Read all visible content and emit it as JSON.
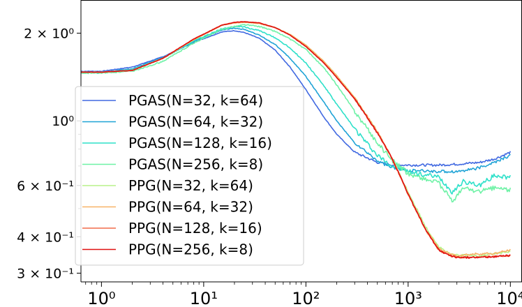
{
  "chart_data": {
    "type": "line",
    "title": "",
    "xlabel": "",
    "ylabel": "",
    "xscale": "log",
    "yscale": "log",
    "xlim": [
      0.63,
      13000
    ],
    "ylim": [
      0.28,
      2.6
    ],
    "grid": false,
    "legend_position": "center-left",
    "x_ticks": [
      {
        "value": 1,
        "label": "10⁰"
      },
      {
        "value": 10,
        "label": "10¹"
      },
      {
        "value": 100,
        "label": "10²"
      },
      {
        "value": 1000,
        "label": "10³"
      },
      {
        "value": 10000,
        "label": "10⁴"
      }
    ],
    "y_ticks": [
      {
        "value": 2.0,
        "label": "2 × 10⁰"
      },
      {
        "value": 1.0,
        "label": "10⁰"
      },
      {
        "value": 0.6,
        "label": "6 × 10⁻¹"
      },
      {
        "value": 0.4,
        "label": "4 × 10⁻¹"
      },
      {
        "value": 0.3,
        "label": "3 × 10⁻¹"
      }
    ],
    "series": [
      {
        "name": "PGAS(N=32, k=64)",
        "color": "#4169e1",
        "noise": 0.004,
        "x": [
          0.63,
          1,
          2,
          4,
          8,
          15,
          20,
          25,
          35,
          50,
          70,
          100,
          150,
          200,
          300,
          500,
          700,
          1000,
          2000,
          3000,
          5000,
          7000,
          10000
        ],
        "y": [
          1.48,
          1.48,
          1.53,
          1.66,
          1.86,
          2.02,
          2.04,
          2.01,
          1.92,
          1.75,
          1.53,
          1.28,
          1.03,
          0.9,
          0.78,
          0.72,
          0.706,
          0.705,
          0.705,
          0.71,
          0.72,
          0.74,
          0.78
        ]
      },
      {
        "name": "PGAS(N=64, k=32)",
        "color": "#1fa3d6",
        "noise": 0.005,
        "x": [
          0.63,
          1,
          2,
          4,
          8,
          15,
          20,
          25,
          35,
          50,
          70,
          100,
          150,
          200,
          300,
          500,
          700,
          1000,
          2000,
          3000,
          5000,
          7000,
          10000
        ],
        "y": [
          1.47,
          1.47,
          1.51,
          1.65,
          1.87,
          2.05,
          2.08,
          2.06,
          1.97,
          1.83,
          1.64,
          1.42,
          1.16,
          1.0,
          0.84,
          0.73,
          0.69,
          0.675,
          0.67,
          0.67,
          0.69,
          0.72,
          0.76
        ]
      },
      {
        "name": "PGAS(N=128, k=16)",
        "color": "#2de0c9",
        "noise": 0.008,
        "x": [
          0.63,
          1,
          2,
          4,
          8,
          15,
          20,
          25,
          35,
          50,
          70,
          100,
          150,
          200,
          300,
          500,
          700,
          1000,
          2000,
          2700,
          3500,
          5000,
          7000,
          10000
        ],
        "y": [
          1.46,
          1.46,
          1.5,
          1.64,
          1.88,
          2.07,
          2.11,
          2.1,
          2.04,
          1.93,
          1.78,
          1.58,
          1.32,
          1.14,
          0.94,
          0.76,
          0.7,
          0.67,
          0.64,
          0.57,
          0.62,
          0.6,
          0.65,
          0.64
        ]
      },
      {
        "name": "PGAS(N=256, k=8)",
        "color": "#6ef2a6",
        "noise": 0.008,
        "x": [
          0.63,
          1,
          2,
          4,
          8,
          15,
          20,
          25,
          35,
          50,
          70,
          100,
          150,
          200,
          300,
          500,
          700,
          1000,
          2000,
          2700,
          3500,
          5000,
          7000,
          10000
        ],
        "y": [
          1.46,
          1.46,
          1.48,
          1.6,
          1.85,
          2.06,
          2.11,
          2.14,
          2.11,
          2.03,
          1.91,
          1.76,
          1.52,
          1.33,
          1.08,
          0.84,
          0.73,
          0.66,
          0.61,
          0.53,
          0.59,
          0.57,
          0.59,
          0.58
        ]
      },
      {
        "name": "PPG(N=32, k=64)",
        "color": "#b8f28a",
        "noise": 0.004,
        "x": [
          0.63,
          1,
          2,
          4,
          8,
          15,
          20,
          25,
          35,
          50,
          70,
          100,
          150,
          200,
          300,
          500,
          700,
          1000,
          1500,
          2000,
          2500,
          3000,
          5000,
          7000,
          10000
        ],
        "y": [
          1.47,
          1.47,
          1.49,
          1.64,
          1.9,
          2.13,
          2.17,
          2.18,
          2.16,
          2.09,
          1.98,
          1.82,
          1.6,
          1.43,
          1.2,
          0.92,
          0.74,
          0.57,
          0.43,
          0.37,
          0.35,
          0.345,
          0.345,
          0.35,
          0.355
        ]
      },
      {
        "name": "PPG(N=64, k=32)",
        "color": "#f7b267",
        "noise": 0.004,
        "x": [
          0.63,
          1,
          2,
          4,
          8,
          15,
          20,
          25,
          35,
          50,
          70,
          100,
          150,
          200,
          300,
          500,
          700,
          1000,
          1500,
          2000,
          2500,
          3000,
          5000,
          7000,
          10000
        ],
        "y": [
          1.47,
          1.47,
          1.49,
          1.64,
          1.9,
          2.13,
          2.17,
          2.18,
          2.16,
          2.09,
          1.98,
          1.82,
          1.6,
          1.43,
          1.2,
          0.92,
          0.74,
          0.56,
          0.42,
          0.365,
          0.35,
          0.345,
          0.35,
          0.35,
          0.36
        ]
      },
      {
        "name": "PPG(N=128, k=16)",
        "color": "#f26b4a",
        "noise": 0.003,
        "x": [
          0.63,
          1,
          2,
          4,
          8,
          15,
          20,
          25,
          35,
          50,
          70,
          100,
          150,
          200,
          300,
          500,
          700,
          1000,
          1500,
          2000,
          2500,
          3000,
          5000,
          7000,
          10000
        ],
        "y": [
          1.47,
          1.47,
          1.49,
          1.64,
          1.91,
          2.13,
          2.18,
          2.19,
          2.17,
          2.09,
          1.97,
          1.8,
          1.58,
          1.41,
          1.19,
          0.91,
          0.74,
          0.56,
          0.42,
          0.36,
          0.345,
          0.34,
          0.34,
          0.342,
          0.345
        ]
      },
      {
        "name": "PPG(N=256, k=8)",
        "color": "#e01010",
        "noise": 0.003,
        "x": [
          0.63,
          1,
          2,
          4,
          8,
          15,
          20,
          25,
          35,
          50,
          70,
          100,
          150,
          200,
          300,
          500,
          700,
          1000,
          1500,
          2000,
          2500,
          3000,
          5000,
          7000,
          10000
        ],
        "y": [
          1.47,
          1.47,
          1.49,
          1.64,
          1.91,
          2.13,
          2.18,
          2.19,
          2.17,
          2.09,
          1.97,
          1.8,
          1.58,
          1.41,
          1.19,
          0.91,
          0.74,
          0.56,
          0.42,
          0.36,
          0.345,
          0.34,
          0.34,
          0.342,
          0.345
        ]
      }
    ]
  }
}
